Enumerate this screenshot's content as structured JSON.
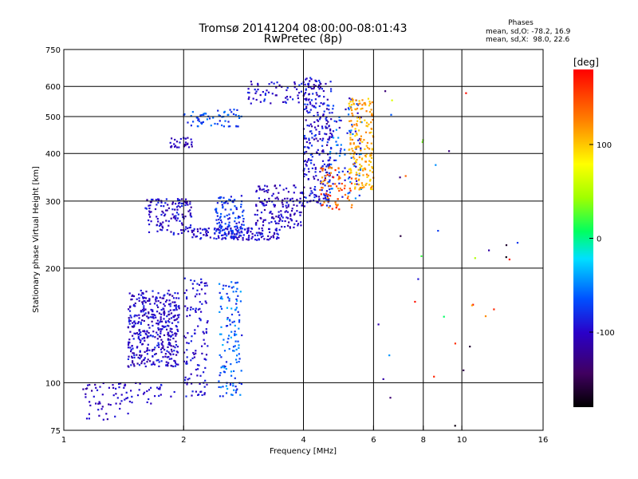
{
  "chart_data": {
    "type": "scatter",
    "title": "Tromsø 20141204 08:00:00-08:01:43",
    "subtitle": "RwPretec (8p)",
    "xlabel": "Frequency [MHz]",
    "ylabel": "Stationary phase Virtual Height [km]",
    "x_scale": "log",
    "y_scale": "log",
    "xlim": [
      1,
      16
    ],
    "ylim": [
      75,
      750
    ],
    "x_ticks": [
      1,
      2,
      4,
      6,
      8,
      10,
      16
    ],
    "x_tick_labels": [
      "1",
      "2",
      "4",
      "6",
      "8",
      "10",
      "16"
    ],
    "y_ticks": [
      75,
      100,
      200,
      300,
      400,
      500,
      600,
      750
    ],
    "y_tick_labels": [
      "75",
      "100",
      "200",
      "300",
      "400",
      "500",
      "600",
      "750"
    ],
    "grid": true,
    "info": {
      "heading": "Phases",
      "line1": "mean, sd,O: -78.2, 16.9",
      "line2": "mean, sd,X:  98.0, 22.6"
    },
    "colorbar": {
      "title": "[deg]",
      "range": [
        -180,
        180
      ],
      "tick_values": [
        100,
        0,
        -100
      ],
      "tick_labels": [
        "100",
        "0",
        "-100"
      ]
    },
    "point_groups": [
      {
        "x": [
          1.45,
          1.95
        ],
        "y": [
          110,
          175
        ],
        "phase": [
          -120,
          -80
        ],
        "n": 420
      },
      {
        "x": [
          1.1,
          1.45
        ],
        "y": [
          80,
          100
        ],
        "phase": [
          -120,
          -90
        ],
        "n": 40
      },
      {
        "x": [
          1.2,
          1.9
        ],
        "y": [
          88,
          100
        ],
        "phase": [
          -110,
          -85
        ],
        "n": 45
      },
      {
        "x": [
          2.0,
          2.3
        ],
        "y": [
          92,
          190
        ],
        "phase": [
          -110,
          -80
        ],
        "n": 120
      },
      {
        "x": [
          2.45,
          2.8
        ],
        "y": [
          92,
          185
        ],
        "phase": [
          -90,
          -35
        ],
        "n": 130
      },
      {
        "x": [
          1.6,
          2.1
        ],
        "y": [
          245,
          305
        ],
        "phase": [
          -120,
          -80
        ],
        "n": 130
      },
      {
        "x": [
          2.1,
          3.5
        ],
        "y": [
          237,
          255
        ],
        "phase": [
          -115,
          -80
        ],
        "n": 140
      },
      {
        "x": [
          2.4,
          2.85
        ],
        "y": [
          240,
          310
        ],
        "phase": [
          -100,
          -60
        ],
        "n": 110
      },
      {
        "x": [
          3.0,
          4.0
        ],
        "y": [
          255,
          330
        ],
        "phase": [
          -120,
          -85
        ],
        "n": 150
      },
      {
        "x": [
          1.85,
          2.1
        ],
        "y": [
          415,
          440
        ],
        "phase": [
          -120,
          -90
        ],
        "n": 30
      },
      {
        "x": [
          2.0,
          2.8
        ],
        "y": [
          470,
          525
        ],
        "phase": [
          -90,
          -50
        ],
        "n": 60
      },
      {
        "x": [
          2.9,
          4.4
        ],
        "y": [
          540,
          620
        ],
        "phase": [
          -115,
          -75
        ],
        "n": 70
      },
      {
        "x": [
          4.0,
          4.7
        ],
        "y": [
          290,
          640
        ],
        "phase": [
          -125,
          -70
        ],
        "n": 260
      },
      {
        "x": [
          4.6,
          5.6
        ],
        "y": [
          300,
          560
        ],
        "phase": [
          -110,
          -40
        ],
        "n": 110
      },
      {
        "x": [
          4.4,
          5.3
        ],
        "y": [
          285,
          370
        ],
        "phase": [
          110,
          170
        ],
        "n": 70
      },
      {
        "x": [
          5.2,
          6.0
        ],
        "y": [
          320,
          560
        ],
        "phase": [
          90,
          130
        ],
        "n": 180
      },
      {
        "x": [
          5.8,
          14.0
        ],
        "y": [
          76,
          640
        ],
        "phase": [
          -180,
          180
        ],
        "n": 35
      }
    ]
  }
}
